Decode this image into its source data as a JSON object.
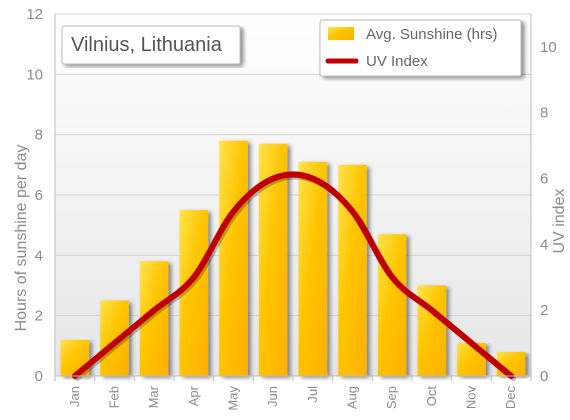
{
  "chart_data": {
    "type": "bar",
    "title": "Vilnius, Lithuania",
    "categories": [
      "Jan",
      "Feb",
      "Mar",
      "Apr",
      "May",
      "Jun",
      "Jul",
      "Aug",
      "Sep",
      "Oct",
      "Nov",
      "Dec"
    ],
    "series": [
      {
        "name": "Avg. Sunshine (hrs)",
        "type": "bar",
        "axis": "left",
        "color": "#FFC200",
        "values": [
          1.2,
          2.5,
          3.8,
          5.5,
          7.8,
          7.7,
          7.1,
          7.0,
          4.7,
          3.0,
          1.1,
          0.8
        ]
      },
      {
        "name": "UV Index",
        "type": "line",
        "axis": "right",
        "color": "#C00000",
        "values": [
          0,
          1,
          2,
          3,
          5,
          6,
          6,
          5,
          3,
          2,
          1,
          0
        ]
      }
    ],
    "ylabel": "Hours of sunshine per day",
    "y2label": "UV index",
    "ylim": [
      0,
      12
    ],
    "y2lim": [
      0,
      11
    ],
    "yticks": [
      0,
      2,
      4,
      6,
      8,
      10,
      12
    ],
    "y2ticks": [
      0,
      2,
      4,
      6,
      8,
      10
    ],
    "grid": true,
    "legend": "top-right"
  }
}
